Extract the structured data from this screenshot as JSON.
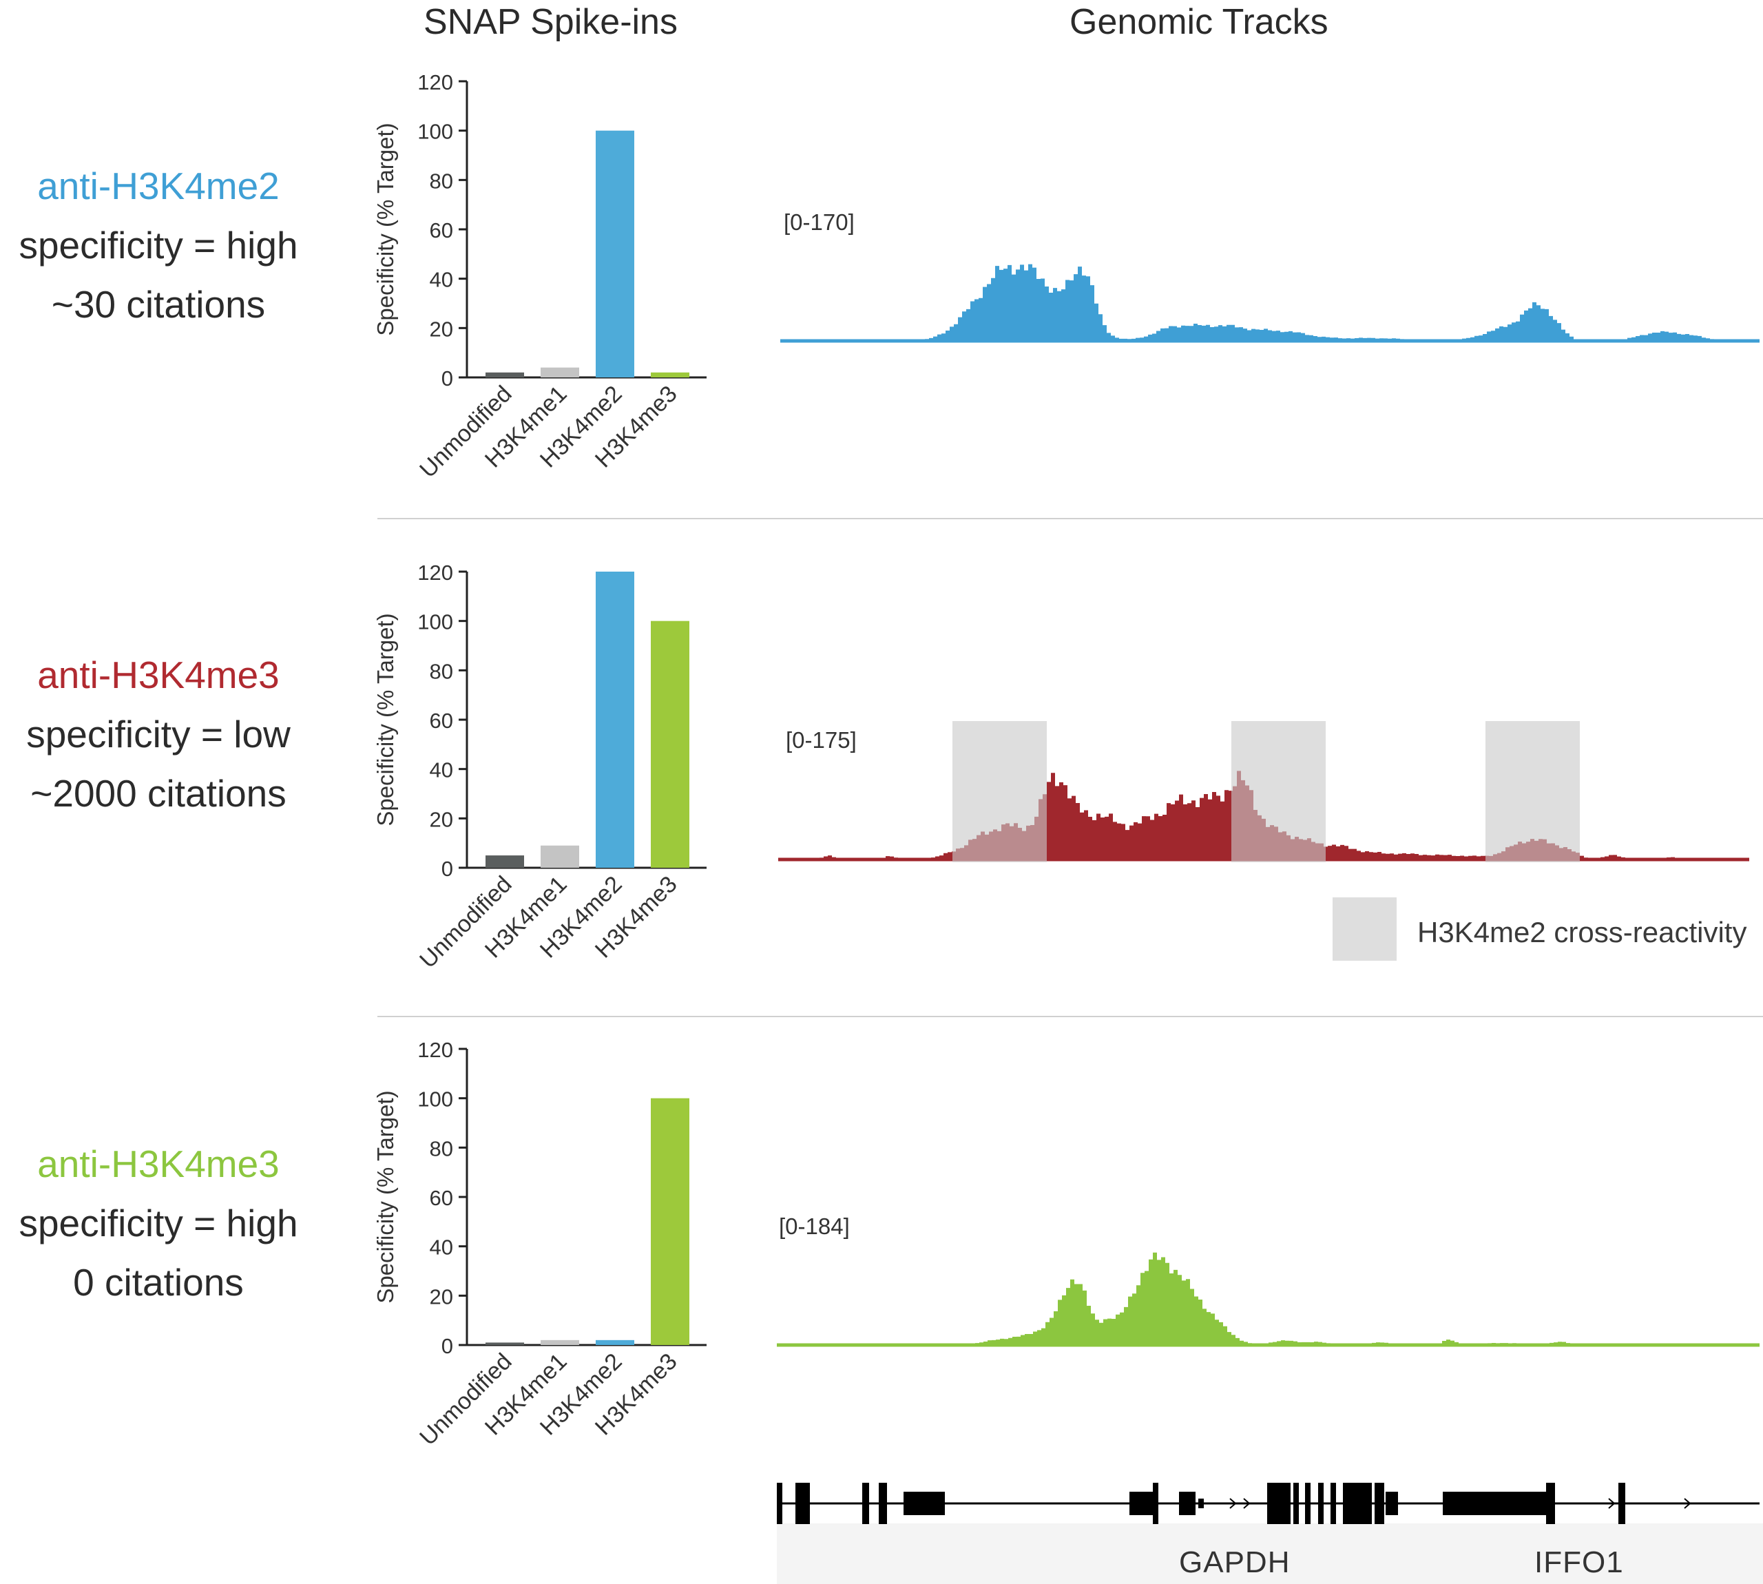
{
  "headers": {
    "snap": "SNAP Spike-ins",
    "tracks": "Genomic Tracks"
  },
  "colors": {
    "unmodified": "#5a5e5e",
    "h3k4me1": "#c4c4c4",
    "h3k4me2": "#4eabd9",
    "h3k4me3": "#9dc93b",
    "red": "#9b2228",
    "shade": "#d6d6d6"
  },
  "rows": [
    {
      "antibody": "anti-H3K4me2",
      "specificity": "specificity = high",
      "citations": "~30 citations",
      "color": "#3f9fd5",
      "track_range": "[0-170]"
    },
    {
      "antibody": "anti-H3K4me3",
      "specificity": "specificity = low",
      "citations": "~2000 citations",
      "color": "#b02a30",
      "track_range": "[0-175]"
    },
    {
      "antibody": "anti-H3K4me3",
      "specificity": "specificity = high",
      "citations": "0 citations",
      "color": "#8cc63f",
      "track_range": "[0-184]"
    }
  ],
  "legend": {
    "label": "H3K4me2 cross-reactivity"
  },
  "genes": [
    "GAPDH",
    "IFFO1"
  ],
  "chart_data": [
    {
      "type": "bar",
      "ylabel": "Specificity (% Target)",
      "categories": [
        "Unmodified",
        "H3K4me1",
        "H3K4me2",
        "H3K4me3"
      ],
      "values": [
        2,
        4,
        100,
        2
      ],
      "yticks": [
        0,
        20,
        40,
        60,
        80,
        100,
        120
      ],
      "ylim": [
        0,
        120
      ]
    },
    {
      "type": "bar",
      "ylabel": "Specificity (% Target)",
      "categories": [
        "Unmodified",
        "H3K4me1",
        "H3K4me2",
        "H3K4me3"
      ],
      "values": [
        5,
        9,
        120,
        100
      ],
      "yticks": [
        0,
        20,
        40,
        60,
        80,
        100,
        120
      ],
      "ylim": [
        0,
        120
      ]
    },
    {
      "type": "bar",
      "ylabel": "Specificity (% Target)",
      "categories": [
        "Unmodified",
        "H3K4me1",
        "H3K4me2",
        "H3K4me3"
      ],
      "values": [
        1,
        2,
        2,
        100
      ],
      "yticks": [
        0,
        20,
        40,
        60,
        80,
        100,
        120
      ],
      "ylim": [
        0,
        120
      ]
    }
  ]
}
